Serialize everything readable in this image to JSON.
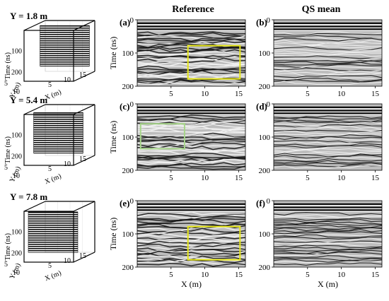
{
  "column_titles": [
    "Reference",
    "QS mean"
  ],
  "rows": [
    {
      "slice_label": "Y = 1.8 m",
      "panel_labels": [
        "(a)",
        "(b)"
      ],
      "box_color": "#e6e619",
      "box": {
        "x0": 7.5,
        "x1": 15.2,
        "t0": 78,
        "t1": 178
      },
      "slice_y": 1.8
    },
    {
      "slice_label": "Y = 5.4 m",
      "panel_labels": [
        "(c)",
        "(d)"
      ],
      "box_color": "#a7d68a",
      "box": {
        "x0": 0.5,
        "x1": 7.0,
        "t0": 60,
        "t1": 135
      },
      "slice_y": 5.4
    },
    {
      "slice_label": "Y = 7.8 m",
      "panel_labels": [
        "(e)",
        "(f)"
      ],
      "box_color": "#e6e619",
      "box": {
        "x0": 7.5,
        "x1": 15.2,
        "t0": 78,
        "t1": 178
      },
      "slice_y": 7.8
    }
  ],
  "axes": {
    "time_label": "Time (ns)",
    "x_label": "X (m)",
    "y_label": "Y (m)",
    "time_ticks": [
      "0",
      "100",
      "200"
    ],
    "x_ticks": [
      "5",
      "10",
      "15"
    ],
    "y_ticks": [
      "5",
      "10"
    ],
    "cube_time_ticks": [
      "100",
      "200"
    ],
    "cube_x_ticks": [
      "5",
      "10",
      "15"
    ],
    "time_range": [
      0,
      200
    ],
    "x_range": [
      0,
      16
    ]
  }
}
